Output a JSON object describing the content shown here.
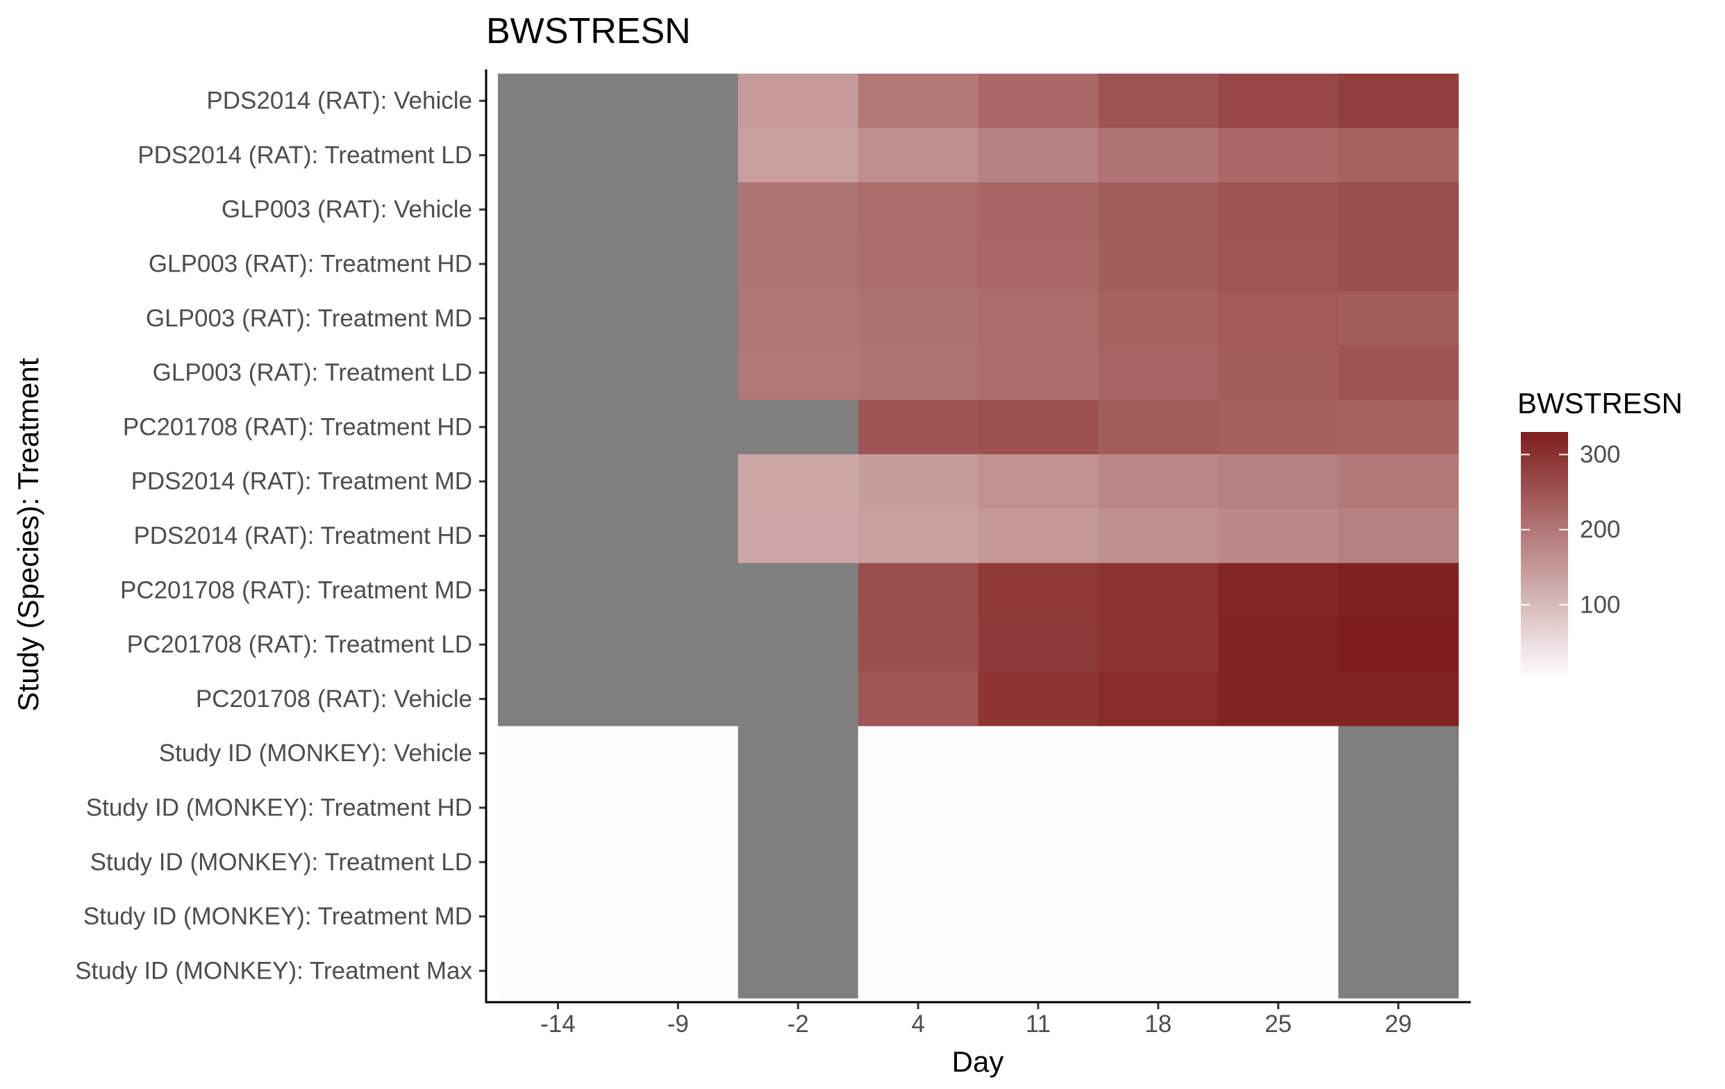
{
  "chart_data": {
    "type": "heatmap",
    "title": "BWSTRESN",
    "xlabel": "Day",
    "ylabel": "Study (Species): Treatment",
    "x": [
      "-14",
      "-9",
      "-2",
      "4",
      "11",
      "18",
      "25",
      "29"
    ],
    "y": [
      "PDS2014 (RAT): Vehicle",
      "PDS2014 (RAT): Treatment LD",
      "GLP003 (RAT): Vehicle",
      "GLP003 (RAT): Treatment HD",
      "GLP003 (RAT): Treatment MD",
      "GLP003 (RAT): Treatment LD",
      "PC201708 (RAT): Treatment HD",
      "PDS2014 (RAT): Treatment MD",
      "PDS2014 (RAT): Treatment HD",
      "PC201708 (RAT): Treatment MD",
      "PC201708 (RAT): Treatment LD",
      "PC201708 (RAT): Vehicle",
      "Study ID (MONKEY): Vehicle",
      "Study ID (MONKEY): Treatment HD",
      "Study ID (MONKEY): Treatment LD",
      "Study ID (MONKEY): Treatment MD",
      "Study ID (MONKEY): Treatment Max"
    ],
    "values": [
      [
        null,
        null,
        148,
        196,
        220,
        250,
        268,
        282
      ],
      [
        null,
        null,
        140,
        165,
        182,
        205,
        222,
        232
      ],
      [
        null,
        null,
        205,
        215,
        225,
        238,
        250,
        260
      ],
      [
        null,
        null,
        203,
        213,
        222,
        236,
        248,
        258
      ],
      [
        null,
        null,
        200,
        208,
        216,
        230,
        243,
        237
      ],
      [
        null,
        null,
        198,
        205,
        213,
        226,
        237,
        250
      ],
      [
        null,
        null,
        null,
        250,
        255,
        238,
        233,
        230
      ],
      [
        null,
        null,
        130,
        145,
        160,
        175,
        185,
        195
      ],
      [
        null,
        null,
        128,
        138,
        150,
        162,
        172,
        185
      ],
      [
        null,
        null,
        null,
        260,
        290,
        300,
        318,
        325
      ],
      [
        null,
        null,
        null,
        258,
        288,
        298,
        322,
        330
      ],
      [
        null,
        null,
        null,
        248,
        295,
        310,
        320,
        322
      ],
      [
        3,
        3,
        null,
        3,
        3,
        3,
        3,
        null
      ],
      [
        3,
        3,
        null,
        3,
        3,
        3,
        3,
        null
      ],
      [
        3,
        3,
        null,
        3,
        3,
        3,
        3,
        null
      ],
      [
        3,
        3,
        null,
        3,
        3,
        3,
        3,
        null
      ],
      [
        3,
        3,
        null,
        3,
        3,
        3,
        3,
        null
      ]
    ],
    "missing_color": "#7f7f7f",
    "color_scale": {
      "low": "#ffffff",
      "high": "#7f1d1d",
      "min": 0,
      "max": 330
    },
    "legend": {
      "title": "BWSTRESN",
      "breaks": [
        100,
        200,
        300
      ],
      "labels": [
        "100",
        "200",
        "300"
      ],
      "position": "right"
    }
  }
}
